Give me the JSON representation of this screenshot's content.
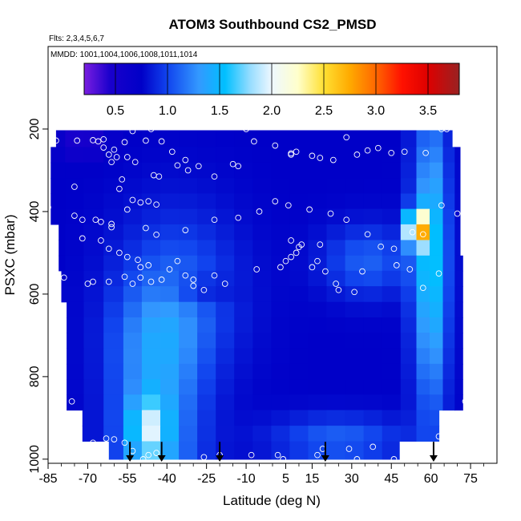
{
  "chart_data": {
    "type": "heatmap",
    "title": "ATOM3 Southbound CS2_PMSD",
    "subtitle_lines": [
      "Flts: 2,3,4,5,6,7",
      "MMDD: 1001,1004,1006,1008,1011,1014"
    ],
    "xlabel": "Latitude (deg N)",
    "ylabel": "PSXC (mbar)",
    "xlim": [
      -85,
      85
    ],
    "ylim": [
      1010,
      0
    ],
    "xticks": [
      -85,
      -70,
      -55,
      -40,
      -25,
      -10,
      5,
      15,
      30,
      45,
      60,
      75
    ],
    "xtick_labels": [
      "-85",
      "-70",
      "-55",
      "-40",
      "-25",
      "-10",
      "5",
      "15",
      "30",
      "45",
      "60",
      "75"
    ],
    "yticks": [
      200,
      400,
      600,
      800,
      1000
    ],
    "ytick_labels": [
      "200",
      "400",
      "600",
      "800",
      "1000"
    ],
    "colorbar": {
      "range": [
        0.2,
        3.8
      ],
      "ticks": [
        0.5,
        1.0,
        1.5,
        2.0,
        2.5,
        3.0,
        3.5
      ],
      "tick_labels": [
        "0.5",
        "1.0",
        "1.5",
        "2.0",
        "2.5",
        "3.0",
        "3.5"
      ],
      "color_stops": [
        {
          "value": 0.2,
          "color": "#7a1ee0"
        },
        {
          "value": 0.45,
          "color": "#1a00cc"
        },
        {
          "value": 0.75,
          "color": "#0000c8"
        },
        {
          "value": 1.0,
          "color": "#1144ee"
        },
        {
          "value": 1.3,
          "color": "#3399ff"
        },
        {
          "value": 1.55,
          "color": "#00bfff"
        },
        {
          "value": 1.8,
          "color": "#99ddff"
        },
        {
          "value": 2.0,
          "color": "#eef8ff"
        },
        {
          "value": 2.25,
          "color": "#ffffcc"
        },
        {
          "value": 2.5,
          "color": "#ffe033"
        },
        {
          "value": 2.75,
          "color": "#ffaa00"
        },
        {
          "value": 3.0,
          "color": "#ff6600"
        },
        {
          "value": 3.25,
          "color": "#ff1100"
        },
        {
          "value": 3.5,
          "color": "#dd0000"
        },
        {
          "value": 3.8,
          "color": "#992222"
        }
      ]
    },
    "pressure_levels": [
      225,
      262,
      300,
      338,
      375,
      412,
      450,
      488,
      525,
      562,
      600,
      638,
      675,
      712,
      750,
      788,
      825,
      862,
      900,
      938,
      975
    ],
    "latitude_nodes": [
      -82,
      -75,
      -68,
      -60,
      -53,
      -46,
      -39,
      -32,
      -25,
      -18,
      -11,
      -4,
      3,
      10,
      17,
      24,
      31,
      38,
      45,
      52,
      57,
      62,
      67,
      71
    ],
    "profile_arrows": [
      -54,
      -42,
      -20,
      20,
      61
    ],
    "observation_points": [
      [
        -64,
        225
      ],
      [
        -59,
        195
      ],
      [
        -53,
        205
      ],
      [
        -46,
        200
      ],
      [
        -42,
        230
      ],
      [
        -48,
        228
      ],
      [
        -56,
        232
      ],
      [
        -82,
        228
      ],
      [
        -74,
        228
      ],
      [
        -68,
        227
      ],
      [
        -66,
        230
      ],
      [
        -64,
        245
      ],
      [
        -60,
        250
      ],
      [
        -62,
        262
      ],
      [
        -59,
        268
      ],
      [
        -55,
        268
      ],
      [
        -61,
        280
      ],
      [
        -52,
        280
      ],
      [
        -38,
        255
      ],
      [
        -33,
        275
      ],
      [
        -28,
        290
      ],
      [
        -22,
        315
      ],
      [
        -36,
        288
      ],
      [
        -43,
        315
      ],
      [
        -45,
        312
      ],
      [
        -57,
        322
      ],
      [
        -58,
        345
      ],
      [
        -53,
        372
      ],
      [
        -50,
        378
      ],
      [
        -44,
        383
      ],
      [
        -47,
        375
      ],
      [
        -10,
        200
      ],
      [
        -7,
        230
      ],
      [
        1,
        240
      ],
      [
        7,
        262
      ],
      [
        9,
        255
      ],
      [
        7,
        259
      ],
      [
        15,
        265
      ],
      [
        18,
        270
      ],
      [
        23,
        275
      ],
      [
        28,
        220
      ],
      [
        32,
        262
      ],
      [
        36,
        252
      ],
      [
        40,
        246
      ],
      [
        45,
        258
      ],
      [
        50,
        255
      ],
      [
        58,
        258
      ],
      [
        64,
        200
      ],
      [
        66,
        200
      ],
      [
        -15,
        285
      ],
      [
        -32,
        300
      ],
      [
        -13,
        290
      ],
      [
        -75,
        340
      ],
      [
        -85,
        390
      ],
      [
        -75,
        410
      ],
      [
        -72,
        420
      ],
      [
        -67,
        420
      ],
      [
        -65,
        425
      ],
      [
        -61,
        430
      ],
      [
        -61,
        438
      ],
      [
        -55,
        395
      ],
      [
        -48,
        440
      ],
      [
        -44,
        456
      ],
      [
        -33,
        445
      ],
      [
        -22,
        420
      ],
      [
        -13,
        415
      ],
      [
        -5,
        400
      ],
      [
        1,
        375
      ],
      [
        6,
        385
      ],
      [
        14,
        395
      ],
      [
        22,
        405
      ],
      [
        28,
        420
      ],
      [
        36,
        455
      ],
      [
        41,
        485
      ],
      [
        46,
        490
      ],
      [
        53,
        450
      ],
      [
        57,
        455
      ],
      [
        64,
        385
      ],
      [
        70,
        405
      ],
      [
        -72,
        465
      ],
      [
        -65,
        470
      ],
      [
        -62,
        490
      ],
      [
        -58,
        500
      ],
      [
        -55,
        510
      ],
      [
        -51,
        517
      ],
      [
        -47,
        530
      ],
      [
        -39,
        540
      ],
      [
        -33,
        555
      ],
      [
        -30,
        565
      ],
      [
        -30,
        580
      ],
      [
        -36,
        520
      ],
      [
        -42,
        565
      ],
      [
        -50,
        535
      ],
      [
        -53,
        575
      ],
      [
        -56,
        558
      ],
      [
        -62,
        570
      ],
      [
        -68,
        570
      ],
      [
        -70,
        575
      ],
      [
        -79,
        560
      ],
      [
        -6,
        540
      ],
      [
        3,
        535
      ],
      [
        5,
        520
      ],
      [
        7,
        510
      ],
      [
        9,
        500
      ],
      [
        10,
        486
      ],
      [
        11,
        480
      ],
      [
        7,
        470
      ],
      [
        18,
        480
      ],
      [
        17,
        520
      ],
      [
        15,
        535
      ],
      [
        20,
        545
      ],
      [
        24,
        575
      ],
      [
        25,
        590
      ],
      [
        31,
        595
      ],
      [
        34,
        545
      ],
      [
        47,
        530
      ],
      [
        52,
        540
      ],
      [
        57,
        585
      ],
      [
        63,
        550
      ],
      [
        -18,
        575
      ],
      [
        -22,
        555
      ],
      [
        -26,
        590
      ],
      [
        -50,
        560
      ],
      [
        -46,
        570
      ],
      [
        -76,
        860
      ],
      [
        -63,
        950
      ],
      [
        -60,
        952
      ],
      [
        -56,
        960
      ],
      [
        -53,
        980
      ],
      [
        -47,
        990
      ],
      [
        -44,
        985
      ],
      [
        -49,
        1000
      ],
      [
        -26,
        995
      ],
      [
        -20,
        990
      ],
      [
        -8,
        990
      ],
      [
        2,
        990
      ],
      [
        4,
        1000
      ],
      [
        17,
        990
      ],
      [
        19,
        975
      ],
      [
        29,
        975
      ],
      [
        32,
        1000
      ],
      [
        38,
        970
      ],
      [
        46,
        1000
      ],
      [
        58,
        995
      ],
      [
        62,
        985
      ],
      [
        73,
        860
      ],
      [
        63,
        945
      ],
      [
        -68,
        960
      ]
    ]
  }
}
